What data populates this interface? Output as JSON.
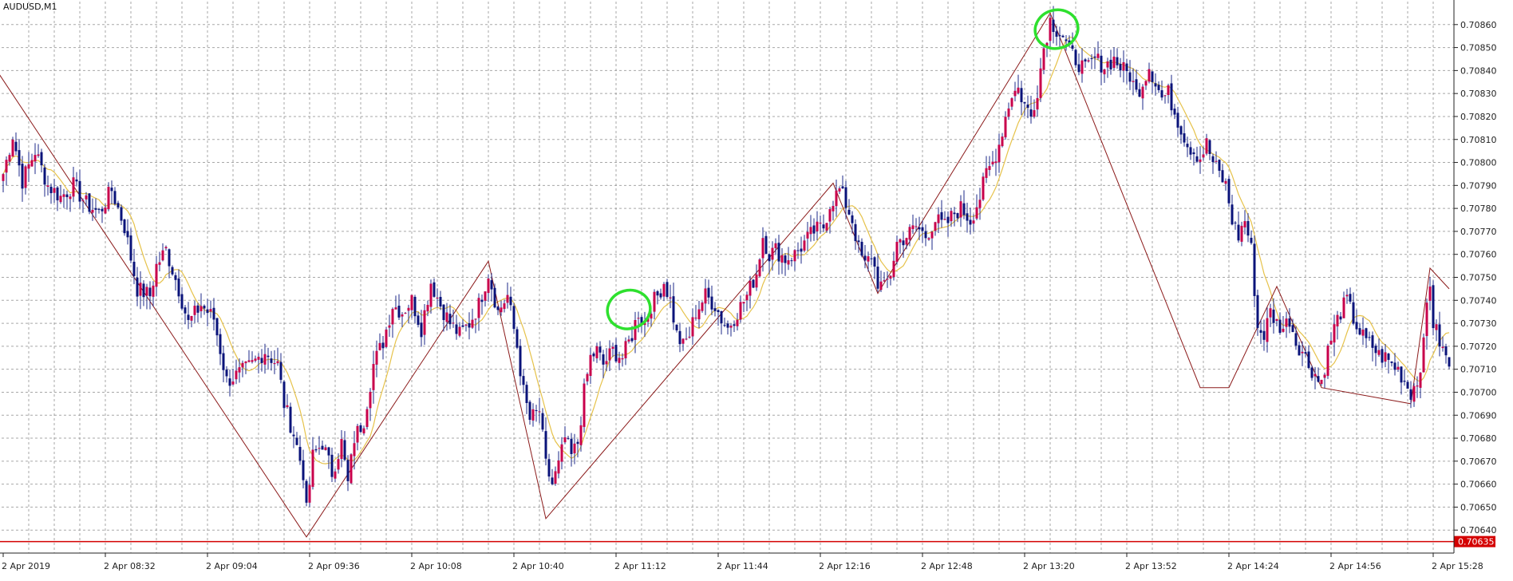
{
  "chart_data": {
    "type": "candlestick",
    "title": "AUDUSD,M1",
    "ylim": [
      0.7063,
      0.7087
    ],
    "grid": true,
    "colors": {
      "bull_body": "#c8004b",
      "bear_body": "#0a137a",
      "wick": "#1e2a8a",
      "moving_average": "#e6c24a",
      "zigzag": "#8b1a1a",
      "bid_line": "#d40000",
      "annotation_circle": "#2ee02e",
      "grid": "#8a8a8a"
    },
    "y_ticks": [
      "0.70860",
      "0.70850",
      "0.70840",
      "0.70830",
      "0.70820",
      "0.70810",
      "0.70800",
      "0.70790",
      "0.70780",
      "0.70770",
      "0.70760",
      "0.70750",
      "0.70740",
      "0.70730",
      "0.70720",
      "0.70710",
      "0.70700",
      "0.70690",
      "0.70680",
      "0.70670",
      "0.70660",
      "0.70650",
      "0.70640"
    ],
    "x_ticks": [
      {
        "label": "2 Apr 2019",
        "minute": 0
      },
      {
        "label": "2 Apr 08:32",
        "minute": 32
      },
      {
        "label": "2 Apr 09:04",
        "minute": 64
      },
      {
        "label": "2 Apr 09:36",
        "minute": 96
      },
      {
        "label": "2 Apr 10:08",
        "minute": 128
      },
      {
        "label": "2 Apr 10:40",
        "minute": 160
      },
      {
        "label": "2 Apr 11:12",
        "minute": 192
      },
      {
        "label": "2 Apr 11:44",
        "minute": 224
      },
      {
        "label": "2 Apr 12:16",
        "minute": 256
      },
      {
        "label": "2 Apr 12:48",
        "minute": 288
      },
      {
        "label": "2 Apr 13:20",
        "minute": 320
      },
      {
        "label": "2 Apr 13:52",
        "minute": 352
      },
      {
        "label": "2 Apr 14:24",
        "minute": 384
      },
      {
        "label": "2 Apr 14:56",
        "minute": 416
      },
      {
        "label": "2 Apr 15:28",
        "minute": 448
      }
    ],
    "current_price": "0.70635",
    "price_anchors": [
      [
        0,
        0.70795
      ],
      [
        3,
        0.70812
      ],
      [
        6,
        0.70792
      ],
      [
        10,
        0.70805
      ],
      [
        14,
        0.7079
      ],
      [
        18,
        0.70785
      ],
      [
        22,
        0.7079
      ],
      [
        26,
        0.70782
      ],
      [
        30,
        0.70778
      ],
      [
        34,
        0.70788
      ],
      [
        38,
        0.70772
      ],
      [
        42,
        0.70745
      ],
      [
        46,
        0.70742
      ],
      [
        48,
        0.70755
      ],
      [
        51,
        0.70762
      ],
      [
        55,
        0.70745
      ],
      [
        58,
        0.7073
      ],
      [
        62,
        0.70738
      ],
      [
        66,
        0.70732
      ],
      [
        70,
        0.70705
      ],
      [
        74,
        0.70708
      ],
      [
        78,
        0.70712
      ],
      [
        82,
        0.70718
      ],
      [
        86,
        0.70712
      ],
      [
        88,
        0.70695
      ],
      [
        91,
        0.70682
      ],
      [
        94,
        0.70665
      ],
      [
        95,
        0.70648
      ],
      [
        97,
        0.70672
      ],
      [
        100,
        0.70678
      ],
      [
        103,
        0.70665
      ],
      [
        106,
        0.70678
      ],
      [
        108,
        0.7066
      ],
      [
        110,
        0.7068
      ],
      [
        113,
        0.70688
      ],
      [
        116,
        0.70712
      ],
      [
        119,
        0.70722
      ],
      [
        122,
        0.70738
      ],
      [
        125,
        0.70735
      ],
      [
        128,
        0.7074
      ],
      [
        131,
        0.70728
      ],
      [
        134,
        0.70748
      ],
      [
        137,
        0.70738
      ],
      [
        140,
        0.7073
      ],
      [
        143,
        0.70725
      ],
      [
        146,
        0.7073
      ],
      [
        149,
        0.70738
      ],
      [
        152,
        0.70752
      ],
      [
        155,
        0.70735
      ],
      [
        158,
        0.70742
      ],
      [
        161,
        0.7072
      ],
      [
        163,
        0.707
      ],
      [
        165,
        0.70688
      ],
      [
        168,
        0.70692
      ],
      [
        170,
        0.70668
      ],
      [
        172,
        0.7066
      ],
      [
        174,
        0.70668
      ],
      [
        176,
        0.7068
      ],
      [
        178,
        0.70672
      ],
      [
        180,
        0.70678
      ],
      [
        182,
        0.707
      ],
      [
        184,
        0.70715
      ],
      [
        186,
        0.70718
      ],
      [
        188,
        0.70712
      ],
      [
        191,
        0.70718
      ],
      [
        194,
        0.70715
      ],
      [
        197,
        0.70725
      ],
      [
        199,
        0.70735
      ],
      [
        201,
        0.7073
      ],
      [
        203,
        0.70738
      ],
      [
        205,
        0.70742
      ],
      [
        207,
        0.70748
      ],
      [
        209,
        0.7074
      ],
      [
        211,
        0.70725
      ],
      [
        213,
        0.7072
      ],
      [
        215,
        0.70725
      ],
      [
        217,
        0.70735
      ],
      [
        220,
        0.70742
      ],
      [
        223,
        0.70738
      ],
      [
        225,
        0.70732
      ],
      [
        227,
        0.70728
      ],
      [
        230,
        0.70735
      ],
      [
        233,
        0.70742
      ],
      [
        236,
        0.70752
      ],
      [
        238,
        0.70768
      ],
      [
        240,
        0.7076
      ],
      [
        242,
        0.70762
      ],
      [
        245,
        0.70758
      ],
      [
        248,
        0.7076
      ],
      [
        251,
        0.70765
      ],
      [
        254,
        0.7077
      ],
      [
        257,
        0.70772
      ],
      [
        259,
        0.70782
      ],
      [
        262,
        0.70788
      ],
      [
        264,
        0.70782
      ],
      [
        266,
        0.70775
      ],
      [
        268,
        0.70762
      ],
      [
        270,
        0.70755
      ],
      [
        272,
        0.7076
      ],
      [
        274,
        0.70748
      ],
      [
        276,
        0.70745
      ],
      [
        278,
        0.70752
      ],
      [
        280,
        0.70765
      ],
      [
        283,
        0.70768
      ],
      [
        286,
        0.70772
      ],
      [
        289,
        0.70768
      ],
      [
        292,
        0.70775
      ],
      [
        295,
        0.70772
      ],
      [
        298,
        0.70778
      ],
      [
        300,
        0.7078
      ],
      [
        303,
        0.70775
      ],
      [
        306,
        0.70785
      ],
      [
        308,
        0.70795
      ],
      [
        310,
        0.708
      ],
      [
        312,
        0.70808
      ],
      [
        314,
        0.7082
      ],
      [
        316,
        0.7083
      ],
      [
        318,
        0.70832
      ],
      [
        320,
        0.70825
      ],
      [
        322,
        0.7082
      ],
      [
        324,
        0.70832
      ],
      [
        326,
        0.7085
      ],
      [
        328,
        0.70862
      ],
      [
        330,
        0.70858
      ],
      [
        332,
        0.70855
      ],
      [
        334,
        0.70848
      ],
      [
        336,
        0.70845
      ],
      [
        339,
        0.7084
      ],
      [
        342,
        0.70845
      ],
      [
        345,
        0.70842
      ],
      [
        348,
        0.70845
      ],
      [
        351,
        0.7084
      ],
      [
        353,
        0.70838
      ],
      [
        355,
        0.7083
      ],
      [
        357,
        0.70835
      ],
      [
        359,
        0.70842
      ],
      [
        361,
        0.70835
      ],
      [
        363,
        0.70828
      ],
      [
        365,
        0.7083
      ],
      [
        367,
        0.70822
      ],
      [
        369,
        0.70815
      ],
      [
        371,
        0.70808
      ],
      [
        373,
        0.70805
      ],
      [
        375,
        0.70802
      ],
      [
        377,
        0.70808
      ],
      [
        379,
        0.708
      ],
      [
        381,
        0.70795
      ],
      [
        383,
        0.7079
      ],
      [
        385,
        0.70775
      ],
      [
        387,
        0.70768
      ],
      [
        389,
        0.70775
      ],
      [
        391,
        0.70762
      ],
      [
        392,
        0.70745
      ],
      [
        393,
        0.70728
      ],
      [
        395,
        0.70725
      ],
      [
        397,
        0.70735
      ],
      [
        399,
        0.7073
      ],
      [
        401,
        0.70728
      ],
      [
        403,
        0.70732
      ],
      [
        405,
        0.70722
      ],
      [
        407,
        0.70718
      ],
      [
        409,
        0.70712
      ],
      [
        411,
        0.70708
      ],
      [
        412,
        0.70705
      ],
      [
        413,
        0.70705
      ],
      [
        415,
        0.70718
      ],
      [
        417,
        0.70728
      ],
      [
        419,
        0.70735
      ],
      [
        421,
        0.7074
      ],
      [
        423,
        0.70732
      ],
      [
        425,
        0.70726
      ],
      [
        427,
        0.70722
      ],
      [
        429,
        0.7072
      ],
      [
        431,
        0.70716
      ],
      [
        433,
        0.70715
      ],
      [
        435,
        0.70712
      ],
      [
        437,
        0.7071
      ],
      [
        439,
        0.70705
      ],
      [
        441,
        0.707
      ],
      [
        443,
        0.70705
      ],
      [
        445,
        0.7072
      ],
      [
        446,
        0.70738
      ],
      [
        447,
        0.70748
      ],
      [
        448,
        0.7073
      ],
      [
        449,
        0.70726
      ],
      [
        451,
        0.70718
      ],
      [
        453,
        0.70712
      ]
    ],
    "zigzag_points": [
      [
        -2,
        0.7084
      ],
      [
        95,
        0.70637
      ],
      [
        152,
        0.70757
      ],
      [
        170,
        0.70645
      ],
      [
        260,
        0.70791
      ],
      [
        274,
        0.70743
      ],
      [
        328,
        0.70865
      ],
      [
        375,
        0.70702
      ],
      [
        384,
        0.70702
      ],
      [
        399,
        0.70746
      ],
      [
        413,
        0.70702
      ],
      [
        441,
        0.70695
      ],
      [
        447,
        0.70754
      ],
      [
        453,
        0.70745
      ]
    ],
    "annotations": [
      {
        "type": "ellipse",
        "minute": 196,
        "price": 0.70736
      },
      {
        "type": "ellipse",
        "minute": 330,
        "price": 0.70858
      }
    ]
  }
}
